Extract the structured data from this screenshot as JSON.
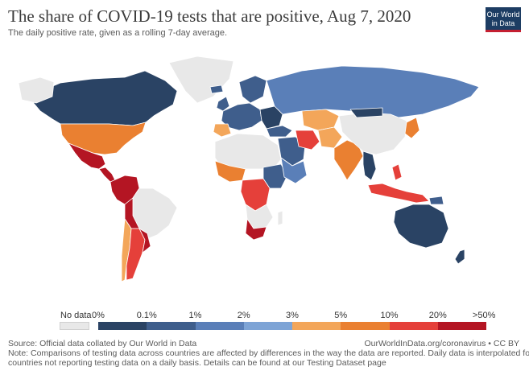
{
  "header": {
    "title": "The share of COVID-19 tests that are positive, Aug 7, 2020",
    "subtitle": "The daily positive rate, given as a rolling 7-day average."
  },
  "logo": {
    "line1": "Our World",
    "line2": "in Data"
  },
  "legend": {
    "no_data_label": "No data",
    "bins": [
      {
        "label": "0%",
        "color": "#1b2a46"
      },
      {
        "label": "0.1%",
        "color": "#2a4364"
      },
      {
        "label": "1%",
        "color": "#3f5e8c"
      },
      {
        "label": "2%",
        "color": "#5a7fb8"
      },
      {
        "label": "3%",
        "color": "#7ea4d6"
      },
      {
        "label": "5%",
        "color": "#f3a65a"
      },
      {
        "label": "10%",
        "color": "#ea8031"
      },
      {
        "label": "20%",
        "color": "#e5403a"
      },
      {
        "label": ">50%",
        "color": "#b41523"
      }
    ]
  },
  "footer": {
    "source": "Source: Official data collated by Our World in Data",
    "url": "OurWorldInData.org/coronavirus • CC BY",
    "note1": "Note: Comparisons of testing data across countries are affected by differences in the way the data are reported. Daily data is interpolated for",
    "note2": "countries not reporting testing data on a daily basis. Details can be found at our Testing Dataset page"
  },
  "map": {
    "colors": {
      "no_data": "#e8e8e8",
      "border": "#ffffff",
      "canada": "#2a4364",
      "usa": "#ea8031",
      "mexico": "#b41523",
      "south_america_north": "#b41523",
      "brazil": "#e8e8e8",
      "argentina": "#e5403a",
      "chile": "#f3a65a",
      "russia": "#5a7fb8",
      "europe": "#3f5e8c",
      "kazakhstan": "#f3a65a",
      "iran": "#e5403a",
      "india": "#ea8031",
      "china": "#e8e8e8",
      "australia": "#2a4364",
      "south_africa": "#b41523",
      "indonesia": "#e5403a"
    }
  }
}
